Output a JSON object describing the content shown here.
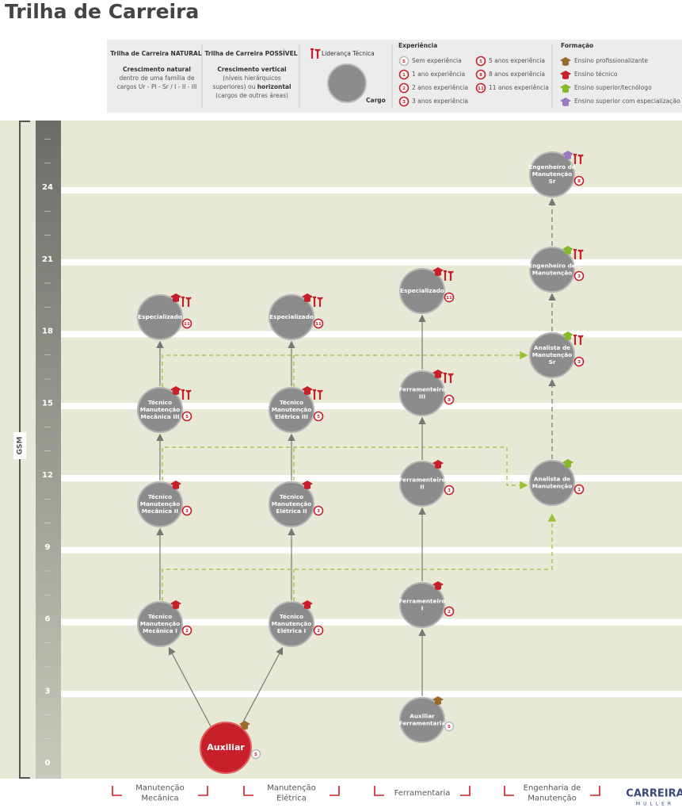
{
  "title": "Trilha de Carreira",
  "legend": {
    "natural": {
      "title": "Trilha de Carreira NATURAL",
      "parts": [
        {
          "text": "Crescimento natural",
          "bold": true
        },
        {
          "text": " dentro de uma família de cargos Ur - Pl - Sr / I - II - III",
          "bold": false
        }
      ]
    },
    "possible": {
      "title": "Trilha de Carreira POSSÍVEL",
      "parts": [
        {
          "text": "Crescimento vertical",
          "bold": true
        },
        {
          "text": " (níveis hierárquicos superiores) ou ",
          "bold": false
        },
        {
          "text": "horizontal",
          "bold": true
        },
        {
          "text": " (cargos de outras áreas)",
          "bold": false
        }
      ]
    },
    "leadership": "Liderança Técnica",
    "position": "Cargo",
    "experience": {
      "title": "Experiência",
      "items": [
        {
          "badge": "S",
          "label": "Sem experiência"
        },
        {
          "badge": "1",
          "label": "1 ano experiência"
        },
        {
          "badge": "2",
          "label": "2 anos experiência"
        },
        {
          "badge": "3",
          "label": "3 anos experiência"
        },
        {
          "badge": "5",
          "label": "5 anos experiência"
        },
        {
          "badge": "8",
          "label": "8 anos experiência"
        },
        {
          "badge": "11",
          "label": "11 anos experiência"
        }
      ]
    },
    "education": {
      "title": "Formação",
      "items": [
        "Ensino profissionalizante",
        "Ensino técnico",
        "Ensino superior/tecnólogo",
        "Ensino superior com especialização"
      ]
    }
  },
  "scale": {
    "label": "GSM",
    "ticks": [
      0,
      3,
      6,
      9,
      12,
      15,
      18,
      21,
      24
    ]
  },
  "nodes": [
    {
      "label": [
        "Auxiliar"
      ],
      "badge": "S"
    },
    {
      "label": [
        "Técnico",
        "Manutenção",
        "Mecânica I"
      ],
      "badge": "2"
    },
    {
      "label": [
        "Técnico",
        "Manutenção",
        "Mecânica II"
      ],
      "badge": "3"
    },
    {
      "label": [
        "Técnico",
        "Manutenção",
        "Mecânica III"
      ],
      "badge": "5"
    },
    {
      "label": [
        "Especializado"
      ],
      "badge": "11"
    },
    {
      "label": [
        "Técnico",
        "Manutenção",
        "Elétrica I"
      ],
      "badge": "2"
    },
    {
      "label": [
        "Técnico",
        "Manutenção",
        "Elétrica II"
      ],
      "badge": "3"
    },
    {
      "label": [
        "Técnico",
        "Manutenção",
        "Elétrica III"
      ],
      "badge": "5"
    },
    {
      "label": [
        "Especializado"
      ],
      "badge": "11"
    },
    {
      "label": [
        "Auxiliar",
        "Ferramentaria"
      ],
      "badge": "S"
    },
    {
      "label": [
        "Ferramenteiro",
        "I"
      ],
      "badge": "2"
    },
    {
      "label": [
        "Ferramenteiro",
        "II"
      ],
      "badge": "3"
    },
    {
      "label": [
        "Ferramenteiro",
        "III"
      ],
      "badge": "8"
    },
    {
      "label": [
        "Especializado"
      ],
      "badge": "11"
    },
    {
      "label": [
        "Analista de",
        "Manutenção"
      ],
      "badge": "1"
    },
    {
      "label": [
        "Analista de",
        "Manutenção",
        "Sr"
      ],
      "badge": "3"
    },
    {
      "label": [
        "Engenheiro de",
        "Manutenção"
      ],
      "badge": "3"
    },
    {
      "label": [
        "Engenheiro de",
        "Manutenção",
        "Sr"
      ],
      "badge": "8"
    }
  ],
  "areas": [
    [
      "Manutenção",
      "Mecânica"
    ],
    [
      "Manutenção",
      "Elétrica"
    ],
    [
      "Ferramentaria"
    ],
    [
      "Engenharia de",
      "Manutenção"
    ]
  ],
  "logo": {
    "name": "CARREIRA",
    "sub": "MULLER"
  }
}
